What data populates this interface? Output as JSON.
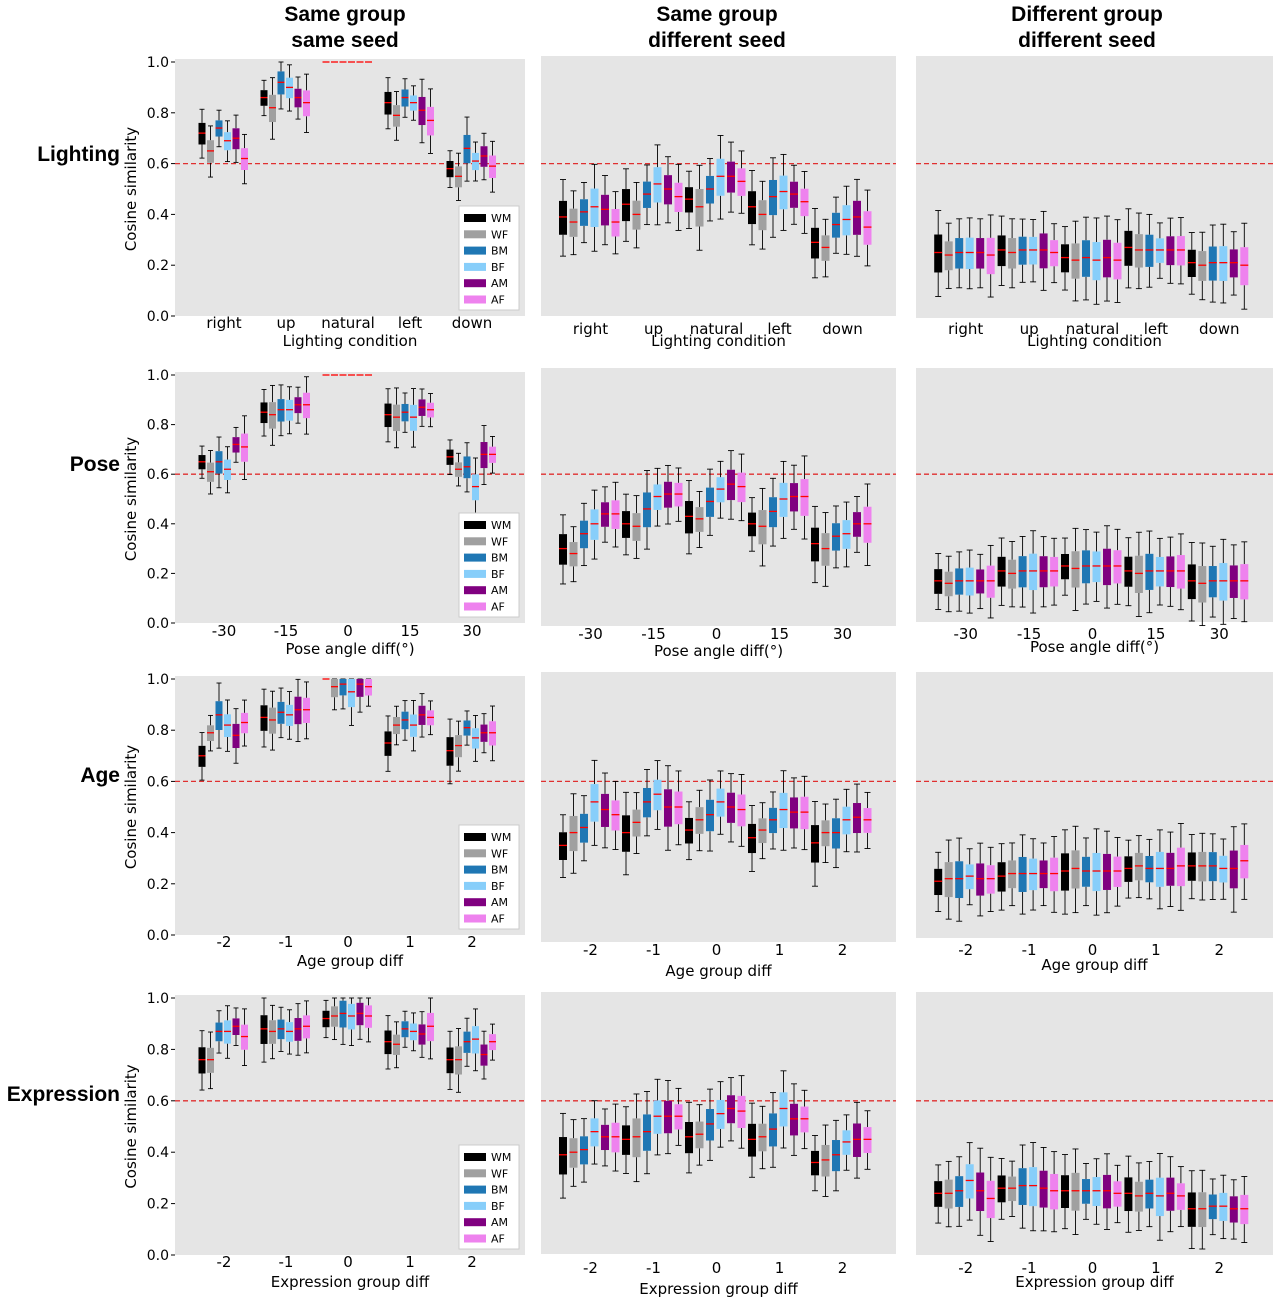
{
  "figure": {
    "column_titles": [
      {
        "line1": "Same group",
        "line2": "same seed"
      },
      {
        "line1": "Same group",
        "line2": "different seed"
      },
      {
        "line1": "Different group",
        "line2": "different seed"
      }
    ],
    "row_titles": [
      "Lighting",
      "Pose",
      "Age",
      "Expression"
    ],
    "threshold": 0.6,
    "colors": {
      "WM": "#000000",
      "WF": "#a0a0a0",
      "BM": "#1f77b4",
      "BF": "#87cefa",
      "AM": "#800080",
      "AF": "#ee82ee",
      "median": "#ff0000",
      "threshold": "#e03030",
      "panel_bg": "#e5e5e5"
    }
  },
  "chart_data": [
    {
      "type": "box",
      "row": 0,
      "col": 0,
      "xlabel": "Lighting condition",
      "ylabel": "Cosine similarity",
      "ylim": [
        0,
        1
      ],
      "yticks": [
        "0.0",
        "0.2",
        "0.4",
        "0.6",
        "0.8",
        "1.0"
      ],
      "categories": [
        "right",
        "up",
        "natural",
        "left",
        "down"
      ],
      "legend": [
        "WM",
        "WF",
        "BM",
        "BF",
        "AM",
        "AF"
      ],
      "legend_pos": "lower-right",
      "series": [
        {
          "name": "WM",
          "medians": [
            0.72,
            0.86,
            1.0,
            0.84,
            0.58
          ]
        },
        {
          "name": "WF",
          "medians": [
            0.65,
            0.82,
            1.0,
            0.79,
            0.55
          ]
        },
        {
          "name": "BM",
          "medians": [
            0.74,
            0.92,
            1.0,
            0.86,
            0.66
          ]
        },
        {
          "name": "BF",
          "medians": [
            0.69,
            0.9,
            1.0,
            0.84,
            0.61
          ]
        },
        {
          "name": "AM",
          "medians": [
            0.7,
            0.86,
            1.0,
            0.81,
            0.63
          ]
        },
        {
          "name": "AF",
          "medians": [
            0.62,
            0.84,
            1.0,
            0.77,
            0.59
          ]
        }
      ]
    },
    {
      "type": "box",
      "row": 0,
      "col": 1,
      "xlabel": "Lighting condition",
      "categories": [
        "right",
        "up",
        "natural",
        "left",
        "down"
      ],
      "series": [
        {
          "name": "WM",
          "medians": [
            0.39,
            0.44,
            0.46,
            0.43,
            0.29
          ]
        },
        {
          "name": "WF",
          "medians": [
            0.37,
            0.4,
            0.43,
            0.4,
            0.27
          ]
        },
        {
          "name": "BM",
          "medians": [
            0.41,
            0.48,
            0.5,
            0.47,
            0.36
          ]
        },
        {
          "name": "BF",
          "medians": [
            0.43,
            0.52,
            0.55,
            0.49,
            0.38
          ]
        },
        {
          "name": "AM",
          "medians": [
            0.42,
            0.5,
            0.55,
            0.48,
            0.39
          ]
        },
        {
          "name": "AF",
          "medians": [
            0.37,
            0.47,
            0.53,
            0.45,
            0.35
          ]
        }
      ]
    },
    {
      "type": "box",
      "row": 0,
      "col": 2,
      "xlabel": "Lighting condition",
      "categories": [
        "right",
        "up",
        "natural",
        "left",
        "down"
      ],
      "series": [
        {
          "name": "WM",
          "medians": [
            0.25,
            0.26,
            0.23,
            0.27,
            0.21
          ]
        },
        {
          "name": "WF",
          "medians": [
            0.24,
            0.25,
            0.22,
            0.26,
            0.2
          ]
        },
        {
          "name": "BM",
          "medians": [
            0.25,
            0.26,
            0.23,
            0.26,
            0.21
          ]
        },
        {
          "name": "BF",
          "medians": [
            0.25,
            0.26,
            0.22,
            0.26,
            0.21
          ]
        },
        {
          "name": "AM",
          "medians": [
            0.25,
            0.26,
            0.23,
            0.26,
            0.21
          ]
        },
        {
          "name": "AF",
          "medians": [
            0.24,
            0.25,
            0.22,
            0.26,
            0.2
          ]
        }
      ]
    },
    {
      "type": "box",
      "row": 1,
      "col": 0,
      "xlabel": "Pose angle diff(°)",
      "ylabel": "Cosine similarity",
      "ylim": [
        0,
        1
      ],
      "yticks": [
        "0.0",
        "0.2",
        "0.4",
        "0.6",
        "0.8",
        "1.0"
      ],
      "categories": [
        "-30",
        "-15",
        "0",
        "15",
        "30"
      ],
      "legend": [
        "WM",
        "WF",
        "BM",
        "BF",
        "AM",
        "AF"
      ],
      "legend_pos": "lower-right",
      "series": [
        {
          "name": "WM",
          "medians": [
            0.65,
            0.85,
            1.0,
            0.84,
            0.67
          ]
        },
        {
          "name": "WF",
          "medians": [
            0.61,
            0.84,
            1.0,
            0.83,
            0.62
          ]
        },
        {
          "name": "BM",
          "medians": [
            0.65,
            0.86,
            1.0,
            0.85,
            0.63
          ]
        },
        {
          "name": "BF",
          "medians": [
            0.62,
            0.86,
            1.0,
            0.83,
            0.55
          ]
        },
        {
          "name": "AM",
          "medians": [
            0.72,
            0.88,
            1.0,
            0.87,
            0.68
          ]
        },
        {
          "name": "AF",
          "medians": [
            0.71,
            0.88,
            1.0,
            0.86,
            0.68
          ]
        }
      ]
    },
    {
      "type": "box",
      "row": 1,
      "col": 1,
      "xlabel": "Pose angle diff(°)",
      "categories": [
        "-30",
        "-15",
        "0",
        "15",
        "30"
      ],
      "series": [
        {
          "name": "WM",
          "medians": [
            0.3,
            0.4,
            0.43,
            0.4,
            0.32
          ]
        },
        {
          "name": "WF",
          "medians": [
            0.28,
            0.39,
            0.42,
            0.39,
            0.3
          ]
        },
        {
          "name": "BM",
          "medians": [
            0.36,
            0.46,
            0.49,
            0.45,
            0.35
          ]
        },
        {
          "name": "BF",
          "medians": [
            0.4,
            0.51,
            0.54,
            0.5,
            0.36
          ]
        },
        {
          "name": "AM",
          "medians": [
            0.44,
            0.52,
            0.56,
            0.51,
            0.4
          ]
        },
        {
          "name": "AF",
          "medians": [
            0.44,
            0.52,
            0.55,
            0.51,
            0.4
          ]
        }
      ]
    },
    {
      "type": "box",
      "row": 1,
      "col": 2,
      "xlabel": "Pose angle diff(°)",
      "categories": [
        "-30",
        "-15",
        "0",
        "15",
        "30"
      ],
      "series": [
        {
          "name": "WM",
          "medians": [
            0.17,
            0.21,
            0.23,
            0.21,
            0.17
          ]
        },
        {
          "name": "WF",
          "medians": [
            0.16,
            0.2,
            0.22,
            0.2,
            0.16
          ]
        },
        {
          "name": "BM",
          "medians": [
            0.17,
            0.21,
            0.23,
            0.21,
            0.17
          ]
        },
        {
          "name": "BF",
          "medians": [
            0.17,
            0.21,
            0.23,
            0.21,
            0.17
          ]
        },
        {
          "name": "AM",
          "medians": [
            0.17,
            0.21,
            0.23,
            0.21,
            0.17
          ]
        },
        {
          "name": "AF",
          "medians": [
            0.17,
            0.21,
            0.23,
            0.21,
            0.17
          ]
        }
      ]
    },
    {
      "type": "box",
      "row": 2,
      "col": 0,
      "xlabel": "Age group diff",
      "ylabel": "Cosine similarity",
      "ylim": [
        0,
        1
      ],
      "yticks": [
        "0.0",
        "0.2",
        "0.4",
        "0.6",
        "0.8",
        "1.0"
      ],
      "categories": [
        "-2",
        "-1",
        "0",
        "1",
        "2"
      ],
      "legend": [
        "WM",
        "WF",
        "BM",
        "BF",
        "AM",
        "AF"
      ],
      "legend_pos": "lower-right",
      "series": [
        {
          "name": "WM",
          "medians": [
            0.7,
            0.85,
            1.0,
            0.75,
            0.72
          ]
        },
        {
          "name": "WF",
          "medians": [
            0.79,
            0.84,
            0.97,
            0.82,
            0.74
          ]
        },
        {
          "name": "BM",
          "medians": [
            0.86,
            0.87,
            0.98,
            0.84,
            0.81
          ]
        },
        {
          "name": "BF",
          "medians": [
            0.82,
            0.86,
            0.95,
            0.82,
            0.77
          ]
        },
        {
          "name": "AM",
          "medians": [
            0.78,
            0.88,
            0.98,
            0.86,
            0.79
          ]
        },
        {
          "name": "AF",
          "medians": [
            0.83,
            0.88,
            0.97,
            0.85,
            0.79
          ]
        }
      ]
    },
    {
      "type": "box",
      "row": 2,
      "col": 1,
      "xlabel": "Age group diff",
      "categories": [
        "-2",
        "-1",
        "0",
        "1",
        "2"
      ],
      "series": [
        {
          "name": "WM",
          "medians": [
            0.35,
            0.4,
            0.41,
            0.38,
            0.36
          ]
        },
        {
          "name": "WF",
          "medians": [
            0.4,
            0.44,
            0.45,
            0.41,
            0.4
          ]
        },
        {
          "name": "BM",
          "medians": [
            0.42,
            0.52,
            0.47,
            0.45,
            0.4
          ]
        },
        {
          "name": "BF",
          "medians": [
            0.52,
            0.55,
            0.52,
            0.49,
            0.45
          ]
        },
        {
          "name": "AM",
          "medians": [
            0.49,
            0.5,
            0.5,
            0.48,
            0.46
          ]
        },
        {
          "name": "AF",
          "medians": [
            0.47,
            0.5,
            0.49,
            0.48,
            0.45
          ]
        }
      ]
    },
    {
      "type": "box",
      "row": 2,
      "col": 2,
      "xlabel": "Age group diff",
      "categories": [
        "-2",
        "-1",
        "0",
        "1",
        "2"
      ],
      "series": [
        {
          "name": "WM",
          "medians": [
            0.21,
            0.23,
            0.25,
            0.26,
            0.27
          ]
        },
        {
          "name": "WF",
          "medians": [
            0.22,
            0.24,
            0.26,
            0.27,
            0.27
          ]
        },
        {
          "name": "BM",
          "medians": [
            0.22,
            0.24,
            0.25,
            0.26,
            0.27
          ]
        },
        {
          "name": "BF",
          "medians": [
            0.23,
            0.24,
            0.25,
            0.26,
            0.26
          ]
        },
        {
          "name": "AM",
          "medians": [
            0.22,
            0.24,
            0.25,
            0.26,
            0.26
          ]
        },
        {
          "name": "AF",
          "medians": [
            0.22,
            0.24,
            0.25,
            0.27,
            0.29
          ]
        }
      ]
    },
    {
      "type": "box",
      "row": 3,
      "col": 0,
      "xlabel": "Expression group diff",
      "ylabel": "Cosine similarity",
      "ylim": [
        0,
        1
      ],
      "yticks": [
        "0.0",
        "0.2",
        "0.4",
        "0.6",
        "0.8",
        "1.0"
      ],
      "categories": [
        "-2",
        "-1",
        "0",
        "1",
        "2"
      ],
      "legend": [
        "WM",
        "WF",
        "BM",
        "BF",
        "AM",
        "AF"
      ],
      "legend_pos": "lower-right",
      "series": [
        {
          "name": "WM",
          "medians": [
            0.76,
            0.88,
            0.92,
            0.83,
            0.76
          ]
        },
        {
          "name": "WF",
          "medians": [
            0.76,
            0.87,
            0.93,
            0.82,
            0.76
          ]
        },
        {
          "name": "BM",
          "medians": [
            0.87,
            0.88,
            0.94,
            0.88,
            0.83
          ]
        },
        {
          "name": "BF",
          "medians": [
            0.87,
            0.87,
            0.93,
            0.87,
            0.84
          ]
        },
        {
          "name": "AM",
          "medians": [
            0.89,
            0.88,
            0.94,
            0.86,
            0.78
          ]
        },
        {
          "name": "AF",
          "medians": [
            0.85,
            0.89,
            0.93,
            0.89,
            0.83
          ]
        }
      ]
    },
    {
      "type": "box",
      "row": 3,
      "col": 1,
      "xlabel": "Expression group diff",
      "categories": [
        "-2",
        "-1",
        "0",
        "1",
        "2"
      ],
      "series": [
        {
          "name": "WM",
          "medians": [
            0.39,
            0.45,
            0.46,
            0.45,
            0.36
          ]
        },
        {
          "name": "WF",
          "medians": [
            0.4,
            0.46,
            0.47,
            0.46,
            0.37
          ]
        },
        {
          "name": "BM",
          "medians": [
            0.41,
            0.48,
            0.51,
            0.49,
            0.39
          ]
        },
        {
          "name": "BF",
          "medians": [
            0.48,
            0.54,
            0.55,
            0.57,
            0.44
          ]
        },
        {
          "name": "AM",
          "medians": [
            0.46,
            0.54,
            0.57,
            0.53,
            0.45
          ]
        },
        {
          "name": "AF",
          "medians": [
            0.46,
            0.54,
            0.56,
            0.53,
            0.45
          ]
        }
      ]
    },
    {
      "type": "box",
      "row": 3,
      "col": 2,
      "xlabel": "Expression group diff",
      "categories": [
        "-2",
        "-1",
        "0",
        "1",
        "2"
      ],
      "series": [
        {
          "name": "WM",
          "medians": [
            0.24,
            0.26,
            0.25,
            0.24,
            0.18
          ]
        },
        {
          "name": "WF",
          "medians": [
            0.24,
            0.26,
            0.25,
            0.23,
            0.18
          ]
        },
        {
          "name": "BM",
          "medians": [
            0.25,
            0.27,
            0.25,
            0.24,
            0.19
          ]
        },
        {
          "name": "BF",
          "medians": [
            0.29,
            0.27,
            0.25,
            0.23,
            0.19
          ]
        },
        {
          "name": "AM",
          "medians": [
            0.25,
            0.26,
            0.25,
            0.24,
            0.18
          ]
        },
        {
          "name": "AF",
          "medians": [
            0.22,
            0.25,
            0.24,
            0.23,
            0.18
          ]
        }
      ]
    }
  ]
}
